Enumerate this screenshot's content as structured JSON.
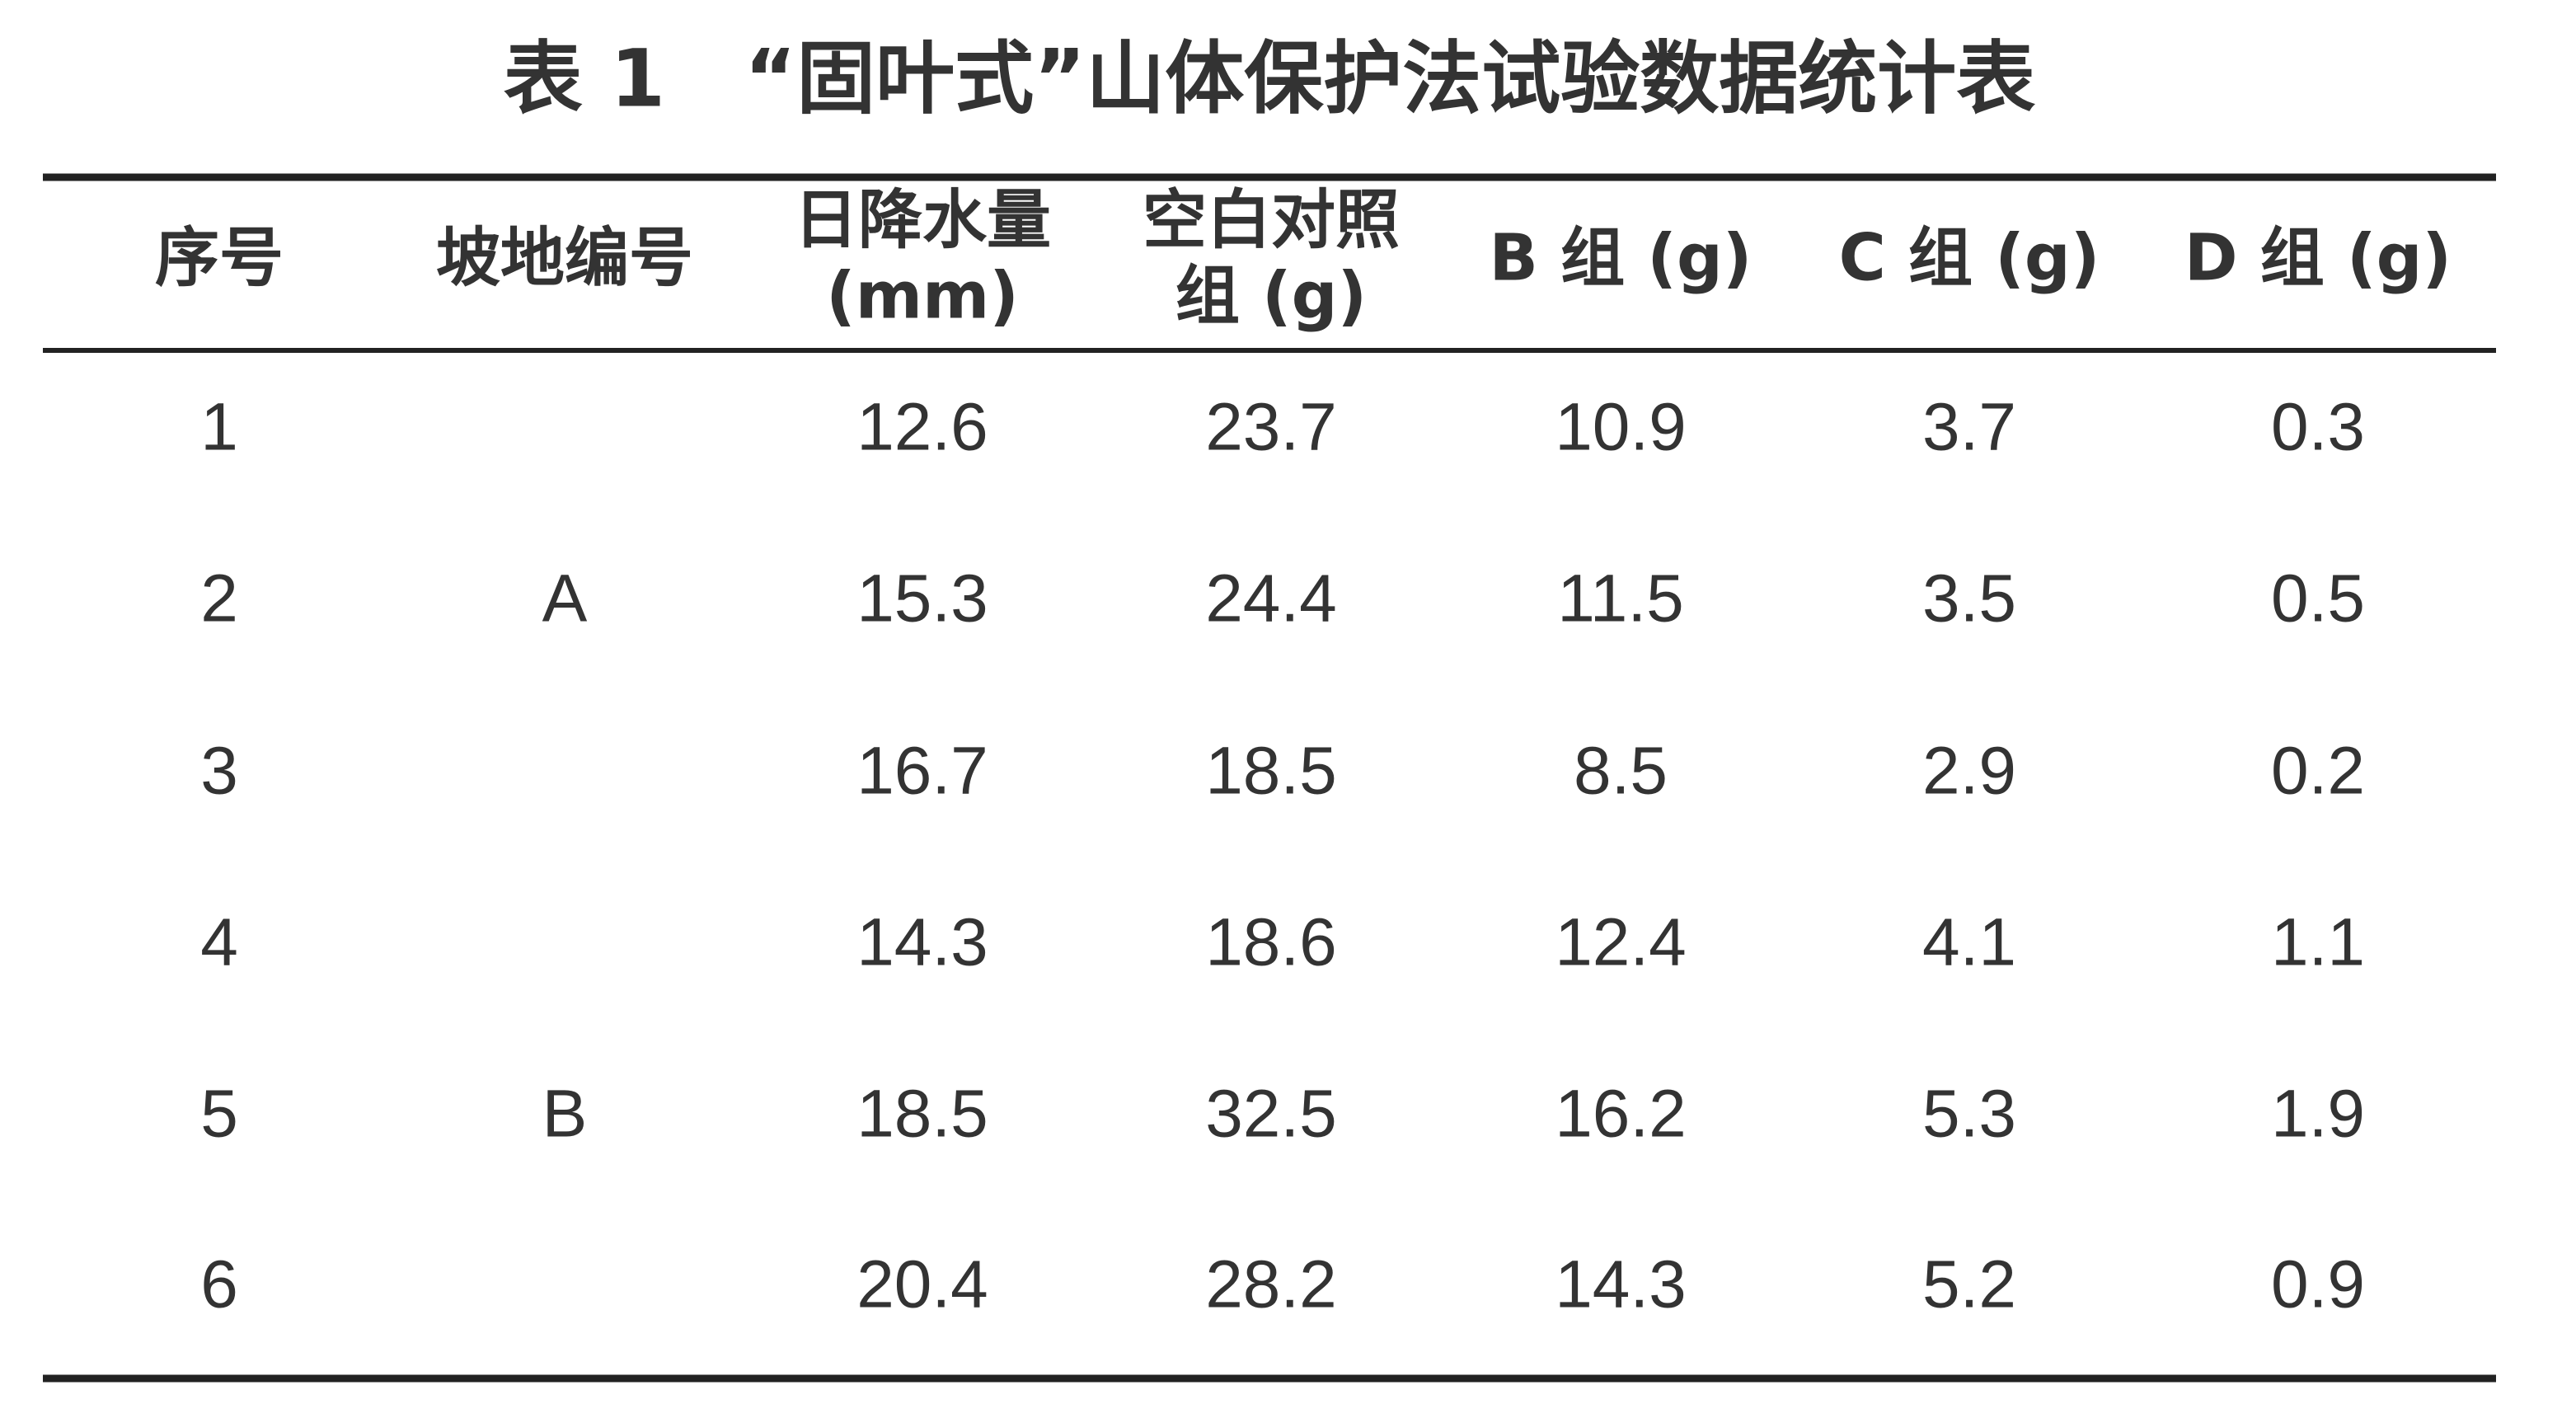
{
  "title": "表 1　“固叶式”山体保护法试验数据统计表",
  "table": {
    "header": [
      [
        "序号"
      ],
      [
        "坡地编号"
      ],
      [
        "日降水量",
        "(mm)"
      ],
      [
        "空白对照",
        "组 (g)"
      ],
      [
        "B 组 (g)"
      ],
      [
        "C 组 (g)"
      ],
      [
        "D 组 (g)"
      ]
    ],
    "rows": [
      [
        "1",
        null,
        "12.6",
        "23.7",
        "10.9",
        "3.7",
        "0.3"
      ],
      [
        "2",
        "A",
        "15.3",
        "24.4",
        "11.5",
        "3.5",
        "0.5"
      ],
      [
        "3",
        null,
        "16.7",
        "18.5",
        "8.5",
        "2.9",
        "0.2"
      ],
      [
        "4",
        null,
        "14.3",
        "18.6",
        "12.4",
        "4.1",
        "1.1"
      ],
      [
        "5",
        "B",
        "18.5",
        "32.5",
        "16.2",
        "5.3",
        "1.9"
      ],
      [
        "6",
        null,
        "20.4",
        "28.2",
        "14.3",
        "5.2",
        "0.9"
      ]
    ]
  }
}
